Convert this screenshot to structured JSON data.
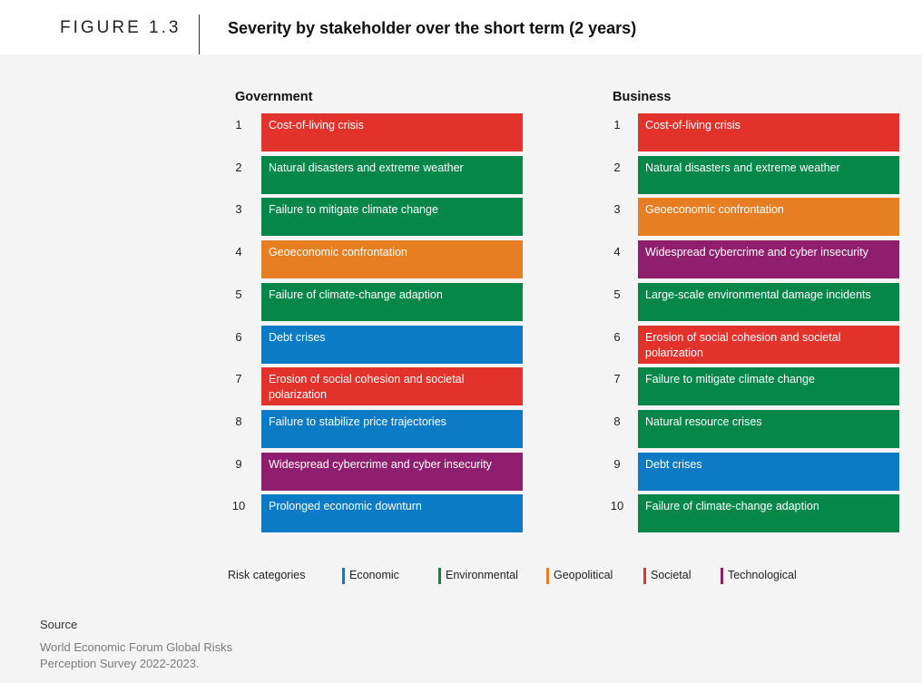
{
  "figure_label": "FIGURE 1.3",
  "title": "Severity by stakeholder over the short term (2 years)",
  "colors": {
    "Economic": "#0a7bc4",
    "Environmental": "#06874a",
    "Geopolitical": "#e87e22",
    "Societal": "#e3322b",
    "Technological": "#8f1f6e"
  },
  "chart_data": [
    {
      "type": "table",
      "title": "Government",
      "rows": [
        {
          "rank": "1",
          "label": "Cost-of-living crisis",
          "category": "Societal"
        },
        {
          "rank": "2",
          "label": "Natural disasters and extreme weather",
          "category": "Environmental"
        },
        {
          "rank": "3",
          "label": "Failure to mitigate climate change",
          "category": "Environmental"
        },
        {
          "rank": "4",
          "label": "Geoeconomic confrontation",
          "category": "Geopolitical"
        },
        {
          "rank": "5",
          "label": "Failure of climate-change adaption",
          "category": "Environmental"
        },
        {
          "rank": "6",
          "label": "Debt crises",
          "category": "Economic"
        },
        {
          "rank": "7",
          "label": "Erosion of social cohesion and societal polarization",
          "category": "Societal"
        },
        {
          "rank": "8",
          "label": "Failure to stabilize price trajectories",
          "category": "Economic"
        },
        {
          "rank": "9",
          "label": "Widespread cybercrime and cyber insecurity",
          "category": "Technological"
        },
        {
          "rank": "10",
          "label": "Prolonged economic downturn",
          "category": "Economic"
        }
      ]
    },
    {
      "type": "table",
      "title": "Business",
      "rows": [
        {
          "rank": "1",
          "label": "Cost-of-living crisis",
          "category": "Societal"
        },
        {
          "rank": "2",
          "label": "Natural disasters and extreme weather",
          "category": "Environmental"
        },
        {
          "rank": "3",
          "label": "Geoeconomic confrontation",
          "category": "Geopolitical"
        },
        {
          "rank": "4",
          "label": "Widespread cybercrime and cyber insecurity",
          "category": "Technological"
        },
        {
          "rank": "5",
          "label": "Large-scale environmental damage incidents",
          "category": "Environmental"
        },
        {
          "rank": "6",
          "label": "Erosion of social cohesion and societal polarization",
          "category": "Societal"
        },
        {
          "rank": "7",
          "label": "Failure to mitigate climate change",
          "category": "Environmental"
        },
        {
          "rank": "8",
          "label": "Natural resource crises",
          "category": "Environmental"
        },
        {
          "rank": "9",
          "label": "Debt crises",
          "category": "Economic"
        },
        {
          "rank": "10",
          "label": "Failure of climate-change adaption",
          "category": "Environmental"
        }
      ]
    }
  ],
  "legend": {
    "title": "Risk categories",
    "items": [
      "Economic",
      "Environmental",
      "Geopolitical",
      "Societal",
      "Technological"
    ]
  },
  "source": {
    "label": "Source",
    "text": "World Economic Forum Global Risks Perception Survey 2022-2023."
  }
}
